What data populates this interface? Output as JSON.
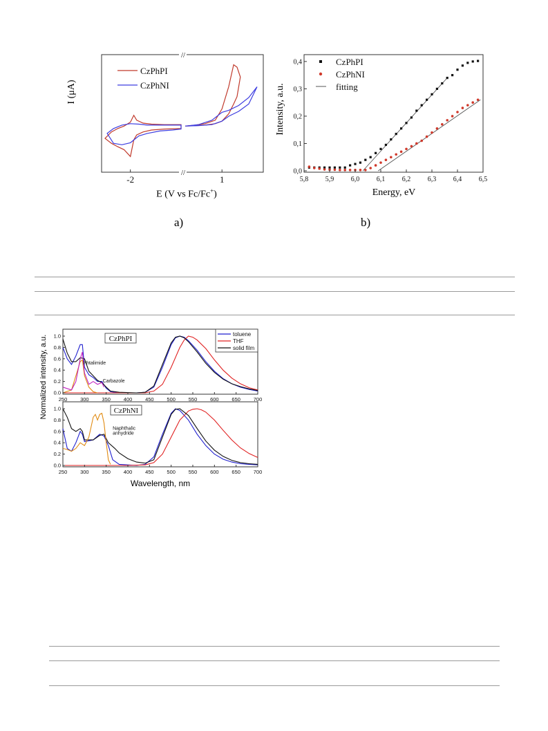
{
  "panel_labels": [
    "a)",
    "b)"
  ],
  "chart_data": [
    {
      "id": "cv",
      "type": "line",
      "title": "",
      "xlabel": "E (V vs Fc/Fc",
      "xlabel_sup": "+",
      "xlabel_close": ")",
      "ylabel": "I (μA)",
      "xticks": [
        "-2",
        "1"
      ],
      "axis_break_marks": [
        "//",
        "//"
      ],
      "legend": [
        {
          "name": "CzPhPI",
          "color": "#c0392b"
        },
        {
          "name": "CzPhNI",
          "color": "#3c3ce0"
        }
      ],
      "note": "Cyclic voltammograms; y-axis has no numeric ticks; x-axis broken between negative and positive potential segments",
      "series": [
        {
          "name": "CzPhPI",
          "color": "#c0392b",
          "cathodic_segment": {
            "x": [
              -2.6,
              -2.45,
              -2.3,
              -2.15,
              -2.0,
              -1.92,
              -1.85,
              -1.7,
              -1.5,
              -1.2,
              -0.8
            ],
            "y_upper": [
              -0.25,
              -0.12,
              -0.05,
              0.0,
              0.08,
              0.22,
              0.12,
              0.06,
              0.04,
              0.03,
              0.03
            ],
            "y_lower": [
              -0.25,
              -0.35,
              -0.42,
              -0.48,
              -0.62,
              -0.28,
              -0.18,
              -0.12,
              -0.08,
              -0.06,
              -0.05
            ]
          },
          "anodic_segment": {
            "x": [
              -0.1,
              0.2,
              0.5,
              0.8,
              1.0,
              1.2,
              1.35,
              1.45,
              1.55
            ],
            "y_upper": [
              0.0,
              0.02,
              0.05,
              0.12,
              0.35,
              0.8,
              1.25,
              1.2,
              1.0
            ],
            "y_lower": [
              0.0,
              0.01,
              0.02,
              0.05,
              0.1,
              0.25,
              0.45,
              0.6,
              1.0
            ]
          }
        },
        {
          "name": "CzPhNI",
          "color": "#3c3ce0",
          "cathodic_segment": {
            "x": [
              -2.55,
              -2.4,
              -2.2,
              -2.0,
              -1.8,
              -1.6,
              -1.3,
              -1.0,
              -0.8
            ],
            "y_upper": [
              -0.15,
              -0.05,
              0.02,
              0.05,
              0.04,
              0.02,
              0.02,
              0.02,
              0.02
            ],
            "y_lower": [
              -0.15,
              -0.35,
              -0.38,
              -0.34,
              -0.2,
              -0.15,
              -0.1,
              -0.08,
              -0.06
            ]
          },
          "anodic_segment": {
            "x": [
              -0.1,
              0.3,
              0.7,
              1.0,
              1.2,
              1.5,
              1.8,
              2.05
            ],
            "y_upper": [
              0.0,
              0.03,
              0.12,
              0.28,
              0.32,
              0.42,
              0.58,
              0.8
            ],
            "y_lower": [
              0.0,
              0.01,
              0.03,
              0.1,
              0.2,
              0.3,
              0.45,
              0.8
            ]
          }
        }
      ]
    },
    {
      "id": "pesa",
      "type": "scatter",
      "title": "",
      "xlabel": "Energy, eV",
      "ylabel": "Intensity, a.u.",
      "xlim": [
        5.8,
        6.5
      ],
      "ylim": [
        0.0,
        0.42
      ],
      "xticks": [
        "5,8",
        "5,9",
        "6,0",
        "6,1",
        "6,2",
        "6,3",
        "6,4",
        "6,5"
      ],
      "yticks": [
        "0,0",
        "0,1",
        "0,2",
        "0,3",
        "0,4"
      ],
      "legend": [
        {
          "name": "CzPhPI",
          "marker": "square",
          "color": "#111111"
        },
        {
          "name": "CzPhNI",
          "marker": "circle",
          "color": "#d0392b"
        },
        {
          "name": "fitting",
          "marker": "line",
          "color": "#555555"
        }
      ],
      "series": [
        {
          "name": "CzPhPI",
          "color": "#111111",
          "x": [
            5.82,
            5.84,
            5.86,
            5.88,
            5.9,
            5.92,
            5.94,
            5.96,
            5.98,
            6.0,
            6.02,
            6.04,
            6.06,
            6.08,
            6.1,
            6.12,
            6.14,
            6.16,
            6.18,
            6.2,
            6.22,
            6.24,
            6.26,
            6.28,
            6.3,
            6.32,
            6.34,
            6.36,
            6.38,
            6.4,
            6.42,
            6.44,
            6.46,
            6.48
          ],
          "y": [
            0.012,
            0.012,
            0.012,
            0.012,
            0.012,
            0.012,
            0.012,
            0.012,
            0.02,
            0.025,
            0.03,
            0.04,
            0.05,
            0.065,
            0.08,
            0.095,
            0.115,
            0.135,
            0.155,
            0.175,
            0.195,
            0.22,
            0.24,
            0.26,
            0.28,
            0.3,
            0.32,
            0.34,
            0.35,
            0.37,
            0.385,
            0.395,
            0.4,
            0.402
          ]
        },
        {
          "name": "CzPhNI",
          "color": "#d0392b",
          "x": [
            5.82,
            5.84,
            5.86,
            5.88,
            5.9,
            5.92,
            5.94,
            5.96,
            5.98,
            6.0,
            6.02,
            6.04,
            6.06,
            6.08,
            6.1,
            6.12,
            6.14,
            6.16,
            6.18,
            6.2,
            6.22,
            6.24,
            6.26,
            6.28,
            6.3,
            6.32,
            6.34,
            6.36,
            6.38,
            6.4,
            6.42,
            6.44,
            6.46,
            6.48
          ],
          "y": [
            0.015,
            0.01,
            0.008,
            0.005,
            0.004,
            0.004,
            0.003,
            0.003,
            0.003,
            0.003,
            0.003,
            0.003,
            0.01,
            0.02,
            0.03,
            0.04,
            0.05,
            0.06,
            0.07,
            0.08,
            0.09,
            0.1,
            0.11,
            0.125,
            0.14,
            0.155,
            0.17,
            0.185,
            0.2,
            0.215,
            0.23,
            0.24,
            0.25,
            0.26
          ]
        }
      ],
      "fits": [
        {
          "name": "CzPhPI",
          "x": [
            6.03,
            6.36
          ],
          "y": [
            0.0,
            0.34
          ]
        },
        {
          "name": "CzPhNI",
          "x": [
            6.09,
            6.49
          ],
          "y": [
            0.0,
            0.26
          ]
        }
      ]
    },
    {
      "id": "spectra-top",
      "type": "line",
      "title": "",
      "panel_label": "CzPhPI",
      "xlim": [
        250,
        700
      ],
      "ylim": [
        0.0,
        1.0
      ],
      "xticks": [
        "250",
        "300",
        "350",
        "400",
        "450",
        "500",
        "550",
        "600",
        "650",
        "700"
      ],
      "yticks": [
        "0.0",
        "0.2",
        "0.4",
        "0.6",
        "0.8",
        "1.0"
      ],
      "legend": [
        {
          "name": "toluene",
          "color": "#1f1fcf"
        },
        {
          "name": "THF",
          "color": "#e02020"
        },
        {
          "name": "solid film",
          "color": "#111111"
        }
      ],
      "annotations": [
        {
          "text": "Phtalimide",
          "x": 297,
          "y": 0.5
        },
        {
          "text": "Carbazole",
          "x": 342,
          "y": 0.18
        }
      ],
      "series": [
        {
          "name": "toluene",
          "color": "#1f1fcf",
          "x": [
            250,
            260,
            270,
            280,
            290,
            295,
            300,
            310,
            320,
            330,
            340,
            350,
            360,
            380,
            420,
            440,
            460,
            480,
            500,
            510,
            520,
            530,
            540,
            560,
            580,
            600,
            620,
            640,
            660,
            680,
            700
          ],
          "y": [
            0.8,
            0.6,
            0.5,
            0.65,
            0.85,
            0.85,
            0.45,
            0.32,
            0.27,
            0.2,
            0.2,
            0.08,
            0.02,
            0.0,
            0.0,
            0.01,
            0.1,
            0.45,
            0.85,
            0.97,
            1.0,
            0.98,
            0.92,
            0.75,
            0.55,
            0.38,
            0.25,
            0.16,
            0.1,
            0.06,
            0.03
          ]
        },
        {
          "name": "THF",
          "color": "#e02020",
          "x": [
            250,
            300,
            350,
            400,
            440,
            460,
            480,
            500,
            520,
            530,
            540,
            550,
            560,
            580,
            600,
            620,
            640,
            660,
            680,
            700
          ],
          "y": [
            0.0,
            0.0,
            0.0,
            0.0,
            0.0,
            0.03,
            0.15,
            0.45,
            0.8,
            0.93,
            1.0,
            0.98,
            0.93,
            0.78,
            0.58,
            0.4,
            0.26,
            0.16,
            0.09,
            0.05
          ]
        },
        {
          "name": "solid film",
          "color": "#111111",
          "x": [
            250,
            260,
            270,
            280,
            290,
            300,
            310,
            320,
            330,
            340,
            350,
            360,
            380,
            420,
            440,
            460,
            480,
            500,
            510,
            520,
            530,
            540,
            560,
            580,
            600,
            620,
            640,
            660,
            680,
            700
          ],
          "y": [
            0.95,
            0.7,
            0.55,
            0.55,
            0.62,
            0.6,
            0.38,
            0.3,
            0.22,
            0.18,
            0.1,
            0.03,
            0.01,
            0.0,
            0.01,
            0.12,
            0.5,
            0.88,
            0.98,
            1.0,
            0.97,
            0.9,
            0.72,
            0.52,
            0.36,
            0.24,
            0.16,
            0.11,
            0.07,
            0.04
          ]
        },
        {
          "name": "",
          "color": "#e08a10",
          "x": [
            250,
            270,
            280,
            290,
            295,
            300,
            310,
            320,
            330
          ],
          "y": [
            0.0,
            0.05,
            0.3,
            0.55,
            0.58,
            0.3,
            0.1,
            0.02,
            0.0
          ]
        },
        {
          "name": "",
          "color": "#c020c0",
          "x": [
            250,
            270,
            280,
            290,
            295,
            300,
            310,
            320,
            330,
            340,
            345
          ],
          "y": [
            0.1,
            0.05,
            0.2,
            0.6,
            0.72,
            0.35,
            0.15,
            0.2,
            0.15,
            0.18,
            0.1
          ]
        }
      ]
    },
    {
      "id": "spectra-bottom",
      "type": "line",
      "title": "",
      "panel_label": "CzPhNI",
      "xlabel": "Wavelength, nm",
      "ylabel": "Normalized intensity, a.u.",
      "xlim": [
        250,
        700
      ],
      "ylim": [
        0.0,
        1.0
      ],
      "xticks": [
        "250",
        "300",
        "350",
        "400",
        "450",
        "500",
        "550",
        "600",
        "650",
        "700"
      ],
      "yticks": [
        "0.0",
        "0.2",
        "0.4",
        "0.6",
        "0.8",
        "1.0"
      ],
      "annotations": [
        {
          "text": "Naphthalic",
          "x": 365,
          "y": 0.63
        },
        {
          "text": "anhydride",
          "x": 365,
          "y": 0.54
        }
      ],
      "series": [
        {
          "name": "toluene",
          "color": "#1f1fcf",
          "x": [
            250,
            260,
            270,
            280,
            290,
            295,
            300,
            320,
            335,
            345,
            355,
            365,
            380,
            420,
            440,
            460,
            480,
            500,
            510,
            520,
            540,
            560,
            580,
            600,
            620,
            640,
            660,
            680,
            700
          ],
          "y": [
            0.65,
            0.3,
            0.25,
            0.4,
            0.6,
            0.55,
            0.42,
            0.45,
            0.55,
            0.52,
            0.35,
            0.1,
            0.02,
            0.0,
            0.02,
            0.15,
            0.55,
            0.92,
            1.0,
            0.97,
            0.8,
            0.55,
            0.35,
            0.2,
            0.11,
            0.06,
            0.03,
            0.02,
            0.01
          ]
        },
        {
          "name": "THF",
          "color": "#e02020",
          "x": [
            250,
            300,
            350,
            400,
            440,
            460,
            480,
            500,
            520,
            540,
            550,
            560,
            570,
            580,
            600,
            620,
            640,
            660,
            680,
            700
          ],
          "y": [
            0.0,
            0.0,
            0.0,
            0.0,
            0.01,
            0.05,
            0.2,
            0.5,
            0.8,
            0.96,
            0.99,
            1.0,
            0.98,
            0.94,
            0.8,
            0.62,
            0.45,
            0.31,
            0.21,
            0.14
          ]
        },
        {
          "name": "solid film",
          "color": "#111111",
          "x": [
            250,
            260,
            270,
            280,
            290,
            295,
            300,
            320,
            335,
            345,
            355,
            370,
            380,
            400,
            420,
            440,
            460,
            480,
            500,
            510,
            520,
            540,
            560,
            580,
            600,
            620,
            640,
            660,
            680,
            700
          ],
          "y": [
            1.0,
            0.85,
            0.65,
            0.6,
            0.65,
            0.6,
            0.45,
            0.45,
            0.53,
            0.55,
            0.4,
            0.3,
            0.22,
            0.12,
            0.06,
            0.04,
            0.1,
            0.5,
            0.9,
            0.99,
            1.0,
            0.88,
            0.65,
            0.43,
            0.27,
            0.16,
            0.09,
            0.05,
            0.03,
            0.02
          ]
        },
        {
          "name": "",
          "color": "#e08a10",
          "x": [
            250,
            260,
            270,
            280,
            290,
            300,
            310,
            320,
            325,
            330,
            335,
            340,
            345,
            350,
            355,
            360
          ],
          "y": [
            0.3,
            0.28,
            0.25,
            0.3,
            0.4,
            0.35,
            0.5,
            0.85,
            0.9,
            0.8,
            0.9,
            0.92,
            0.75,
            0.4,
            0.1,
            0.02
          ]
        }
      ]
    }
  ]
}
